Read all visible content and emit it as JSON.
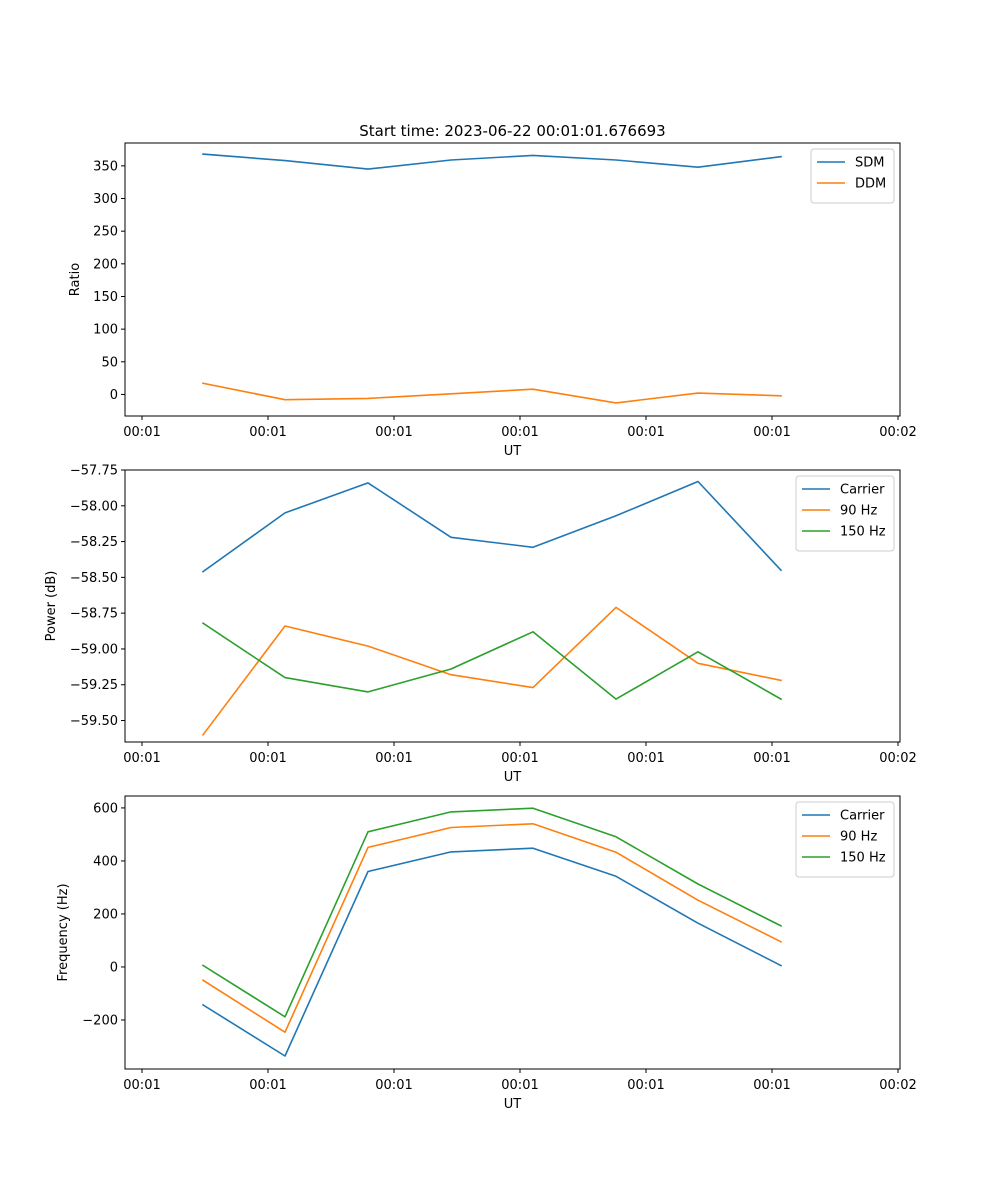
{
  "chart_data": [
    {
      "type": "line",
      "title": "Start time: 2023-06-22 00:01:01.676693",
      "xlabel": "UT",
      "ylabel": "Ratio",
      "x": [
        0,
        1,
        2,
        3,
        4,
        5,
        6,
        7
      ],
      "x_tick_labels": [
        "00:01",
        "00:01",
        "00:01",
        "00:01",
        "00:01",
        "00:01",
        "00:02"
      ],
      "ylim": [
        -33,
        385
      ],
      "yticks": [
        0,
        50,
        100,
        150,
        200,
        250,
        300,
        350
      ],
      "legend_loc": "upper right",
      "series": [
        {
          "name": "SDM",
          "color": "#1f77b4",
          "values": [
            368,
            358,
            345,
            359,
            366,
            359,
            348,
            364
          ]
        },
        {
          "name": "DDM",
          "color": "#ff7f0e",
          "values": [
            17,
            -8,
            -6,
            1,
            8,
            -13,
            2,
            -2
          ]
        }
      ]
    },
    {
      "type": "line",
      "title": "",
      "xlabel": "UT",
      "ylabel": "Power (dB)",
      "x": [
        0,
        1,
        2,
        3,
        4,
        5,
        6,
        7
      ],
      "x_tick_labels": [
        "00:01",
        "00:01",
        "00:01",
        "00:01",
        "00:01",
        "00:01",
        "00:02"
      ],
      "ylim": [
        -59.65,
        -57.75
      ],
      "yticks": [
        -57.75,
        -58.0,
        -58.25,
        -58.5,
        -58.75,
        -59.0,
        -59.25,
        -59.5
      ],
      "ytick_labels": [
        "−57.75",
        "−58.00",
        "−58.25",
        "−58.50",
        "−58.75",
        "−59.00",
        "−59.25",
        "−59.50"
      ],
      "legend_loc": "upper right",
      "series": [
        {
          "name": "Carrier",
          "color": "#1f77b4",
          "values": [
            -58.46,
            -58.05,
            -57.84,
            -58.22,
            -58.29,
            -58.07,
            -57.83,
            -58.45
          ]
        },
        {
          "name": "90 Hz",
          "color": "#ff7f0e",
          "values": [
            -59.6,
            -58.84,
            -58.98,
            -59.18,
            -59.27,
            -58.71,
            -59.1,
            -59.22
          ]
        },
        {
          "name": "150 Hz",
          "color": "#2ca02c",
          "values": [
            -58.82,
            -59.2,
            -59.3,
            -59.14,
            -58.88,
            -59.35,
            -59.02,
            -59.35
          ]
        }
      ]
    },
    {
      "type": "line",
      "title": "",
      "xlabel": "UT",
      "ylabel": "Frequency (Hz)",
      "x": [
        0,
        1,
        2,
        3,
        4,
        5,
        6,
        7
      ],
      "x_tick_labels": [
        "00:01",
        "00:01",
        "00:01",
        "00:01",
        "00:01",
        "00:01",
        "00:02"
      ],
      "ylim": [
        -385,
        645
      ],
      "yticks": [
        -200,
        0,
        200,
        400,
        600
      ],
      "ytick_labels": [
        "−200",
        "0",
        "200",
        "400",
        "600"
      ],
      "legend_loc": "upper right",
      "series": [
        {
          "name": "Carrier",
          "color": "#1f77b4",
          "values": [
            -143,
            -336,
            360,
            434,
            448,
            342,
            165,
            5
          ]
        },
        {
          "name": "90 Hz",
          "color": "#ff7f0e",
          "values": [
            -50,
            -246,
            451,
            526,
            540,
            433,
            252,
            95
          ]
        },
        {
          "name": "150 Hz",
          "color": "#2ca02c",
          "values": [
            6,
            -188,
            510,
            585,
            599,
            491,
            313,
            155
          ]
        }
      ]
    }
  ]
}
